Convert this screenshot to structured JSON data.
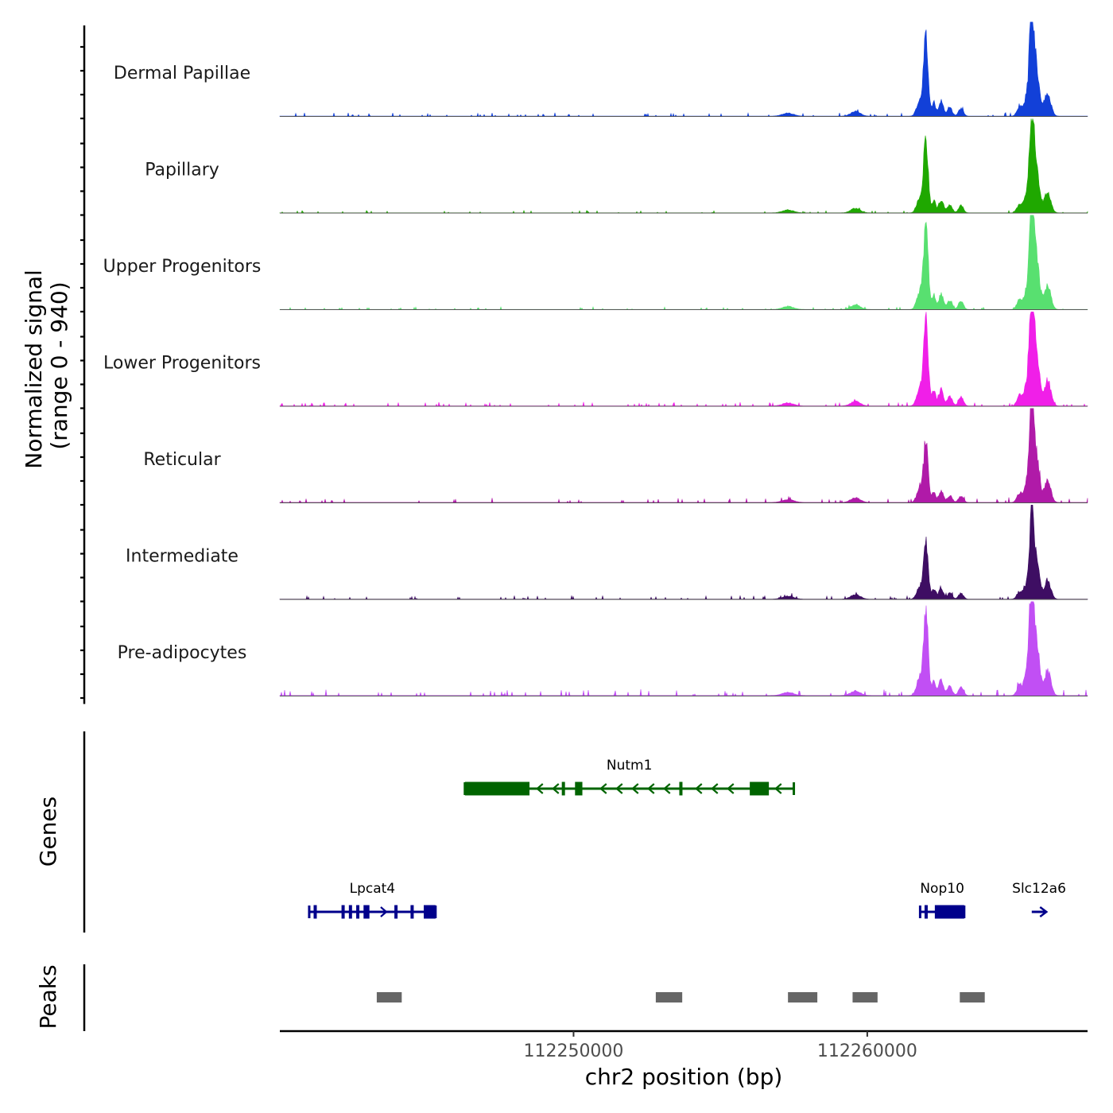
{
  "chart_data": {
    "type": "area",
    "chromosome": "chr2",
    "region": [
      112240000,
      112267500
    ],
    "xlabel": "chr2 position (bp)",
    "ylabel_line1": "Normalized signal",
    "ylabel_line2": "(range 0 - 940)",
    "signal_range": [
      0,
      940
    ],
    "x_ticks": [
      {
        "value": 112250000,
        "label": "112250000"
      },
      {
        "value": 112260000,
        "label": "112260000"
      }
    ],
    "tracks": [
      {
        "name": "Dermal Papillae",
        "color": "#1240D8",
        "peak_heights": [
          0.85,
          1.0
        ],
        "background_noise": 0.03
      },
      {
        "name": "Papillary",
        "color": "#1FA800",
        "peak_heights": [
          0.8,
          0.91
        ],
        "background_noise": 0.02
      },
      {
        "name": "Upper Progenitors",
        "color": "#58E070",
        "peak_heights": [
          0.92,
          1.05
        ],
        "background_noise": 0.02
      },
      {
        "name": "Lower Progenitors",
        "color": "#F01FE8",
        "peak_heights": [
          0.98,
          1.12
        ],
        "background_noise": 0.03
      },
      {
        "name": "Reticular",
        "color": "#B01AA8",
        "peak_heights": [
          0.68,
          0.95
        ],
        "background_noise": 0.04
      },
      {
        "name": "Intermediate",
        "color": "#3E0E63",
        "peak_heights": [
          0.65,
          0.8
        ],
        "background_noise": 0.03
      },
      {
        "name": "Pre-adipocytes",
        "color": "#C14FF4",
        "peak_heights": [
          0.95,
          1.1
        ],
        "background_noise": 0.05
      }
    ],
    "genes_track_label": "Genes",
    "genes": [
      {
        "name": "Nutm1",
        "start": 112246300,
        "end": 112257500,
        "strand": "-",
        "row": 1,
        "color": "#006400",
        "exons": [
          [
            112246300,
            112248500
          ],
          [
            112249600,
            112249700
          ],
          [
            112250050,
            112250300
          ],
          [
            112253600,
            112253700
          ],
          [
            112256000,
            112256650
          ]
        ]
      },
      {
        "name": "Lpcat4",
        "start": 112241000,
        "end": 112245300,
        "strand": "+",
        "row": 2,
        "color": "#00008B",
        "exons": [
          [
            112241150,
            112241250
          ],
          [
            112242100,
            112242200
          ],
          [
            112242350,
            112242450
          ],
          [
            112242600,
            112242700
          ],
          [
            112242850,
            112243050
          ],
          [
            112243900,
            112244000
          ],
          [
            112244450,
            112244550
          ],
          [
            112244900,
            112245300
          ]
        ]
      },
      {
        "name": "Nop10",
        "start": 112261800,
        "end": 112263300,
        "strand": "-",
        "row": 2,
        "color": "#00008B",
        "exons": [
          [
            112261950,
            112262000
          ],
          [
            112262300,
            112263300
          ]
        ]
      },
      {
        "name": "Slc12a6",
        "start": 112265600,
        "end": 112266100,
        "strand": "+",
        "row": 2,
        "color": "#00008B",
        "exons": []
      }
    ],
    "peaks_track_label": "Peaks",
    "peak_color": "#666666",
    "peaks": [
      [
        112243300,
        112244150
      ],
      [
        112252800,
        112253700
      ],
      [
        112257300,
        112258300
      ],
      [
        112259500,
        112260350
      ],
      [
        112263150,
        112264000
      ]
    ]
  }
}
